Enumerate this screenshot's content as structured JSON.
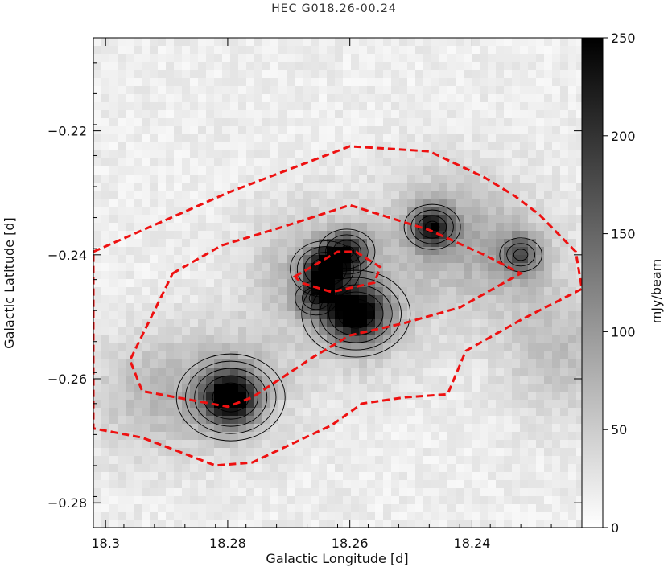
{
  "chart_data": {
    "type": "heatmap",
    "title": "HEC G018.26-00.24",
    "xlabel": "Galactic Longitude [d]",
    "ylabel": "Galactic Latitude [d]",
    "xlim": [
      18.302,
      18.222
    ],
    "ylim": [
      -0.284,
      -0.205
    ],
    "x_ticks": [
      18.3,
      18.28,
      18.26,
      18.24
    ],
    "x_tick_labels": [
      "18.3",
      "18.28",
      "18.26",
      "18.24"
    ],
    "y_ticks": [
      -0.22,
      -0.24,
      -0.26,
      -0.28
    ],
    "y_tick_labels": [
      "−0.22",
      "−0.24",
      "−0.26",
      "−0.28"
    ],
    "colorbar": {
      "label": "mJy/beam",
      "min": 0,
      "max": 250,
      "ticks": [
        0,
        50,
        100,
        150,
        200,
        250
      ],
      "tick_labels": [
        "0",
        "50",
        "100",
        "150",
        "200",
        "250"
      ],
      "colormap": "grayscale (white = low, black = high)"
    },
    "emission_peaks": [
      {
        "l": 18.2795,
        "b": -0.263,
        "value": 240
      },
      {
        "l": 18.259,
        "b": -0.2495,
        "value": 240
      },
      {
        "l": 18.264,
        "b": -0.2423,
        "value": 200
      },
      {
        "l": 18.2605,
        "b": -0.2395,
        "value": 170
      },
      {
        "l": 18.2465,
        "b": -0.2355,
        "value": 175
      },
      {
        "l": 18.232,
        "b": -0.24,
        "value": 110
      },
      {
        "l": 18.2655,
        "b": -0.247,
        "value": 120
      }
    ],
    "red_dashed_regions": [
      {
        "name": "outer",
        "points": [
          [
            18.302,
            -0.2395
          ],
          [
            18.28,
            -0.23
          ],
          [
            18.268,
            -0.2255
          ],
          [
            18.26,
            -0.2225
          ],
          [
            18.247,
            -0.2233
          ],
          [
            18.238,
            -0.2275
          ],
          [
            18.233,
            -0.2305
          ],
          [
            18.229,
            -0.2335
          ],
          [
            18.223,
            -0.2395
          ],
          [
            18.222,
            -0.2455
          ],
          [
            18.232,
            -0.2505
          ],
          [
            18.241,
            -0.2555
          ],
          [
            18.244,
            -0.2625
          ],
          [
            18.251,
            -0.263
          ],
          [
            18.258,
            -0.264
          ],
          [
            18.263,
            -0.2675
          ],
          [
            18.276,
            -0.2735
          ],
          [
            18.282,
            -0.274
          ],
          [
            18.294,
            -0.2695
          ],
          [
            18.302,
            -0.268
          ]
        ]
      },
      {
        "name": "inner",
        "points": [
          [
            18.289,
            -0.243
          ],
          [
            18.281,
            -0.2385
          ],
          [
            18.271,
            -0.2355
          ],
          [
            18.26,
            -0.232
          ],
          [
            18.247,
            -0.236
          ],
          [
            18.238,
            -0.24
          ],
          [
            18.233,
            -0.2425
          ],
          [
            18.232,
            -0.243
          ],
          [
            18.242,
            -0.2485
          ],
          [
            18.251,
            -0.251
          ],
          [
            18.26,
            -0.253
          ],
          [
            18.266,
            -0.2565
          ],
          [
            18.276,
            -0.263
          ],
          [
            18.28,
            -0.2645
          ],
          [
            18.294,
            -0.262
          ],
          [
            18.296,
            -0.257
          ]
        ]
      },
      {
        "name": "small",
        "points": [
          [
            18.269,
            -0.2435
          ],
          [
            18.262,
            -0.2395
          ],
          [
            18.259,
            -0.2395
          ],
          [
            18.255,
            -0.242
          ],
          [
            18.256,
            -0.2445
          ],
          [
            18.263,
            -0.246
          ],
          [
            18.268,
            -0.2445
          ]
        ]
      }
    ]
  }
}
